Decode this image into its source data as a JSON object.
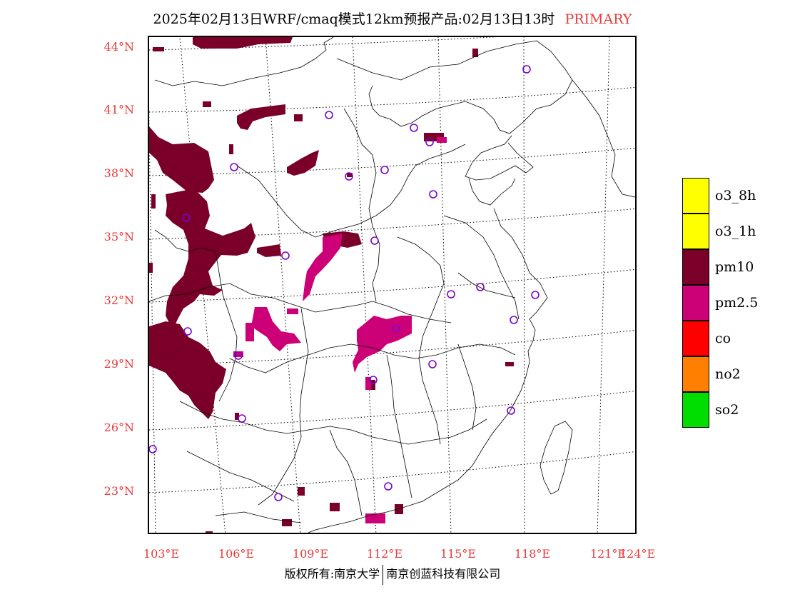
{
  "title": {
    "text": "2025年02月13日WRF/cmaq模式12km预报产品:02月13日13时",
    "tag": "PRIMARY"
  },
  "latitude_labels": [
    "44°N",
    "41°N",
    "38°N",
    "35°N",
    "32°N",
    "29°N",
    "26°N",
    "23°N"
  ],
  "longitude_labels": [
    "103°E",
    "106°E",
    "109°E",
    "112°E",
    "115°E",
    "118°E",
    "121°E",
    "124°E"
  ],
  "legend": [
    {
      "label": "o3_8h",
      "color": "#ffff00"
    },
    {
      "label": "o3_1h",
      "color": "#ffff00"
    },
    {
      "label": "pm10",
      "color": "#7a0029"
    },
    {
      "label": "pm2.5",
      "color": "#cc0077"
    },
    {
      "label": "co",
      "color": "#ff0000"
    },
    {
      "label": "no2",
      "color": "#ff7f00"
    },
    {
      "label": "so2",
      "color": "#00dd00"
    }
  ],
  "colors": {
    "pm10": "#7a0029",
    "pm25": "#cc0077",
    "station_marker": "#7a00cc",
    "label_red": "#e83a3a"
  },
  "footer": {
    "left": "版权所有:南京大学",
    "right": "南京创蓝科技有限公司"
  }
}
